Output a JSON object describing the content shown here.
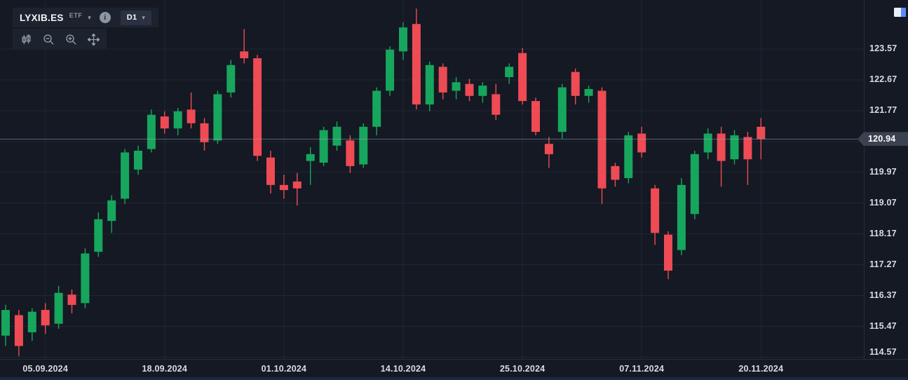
{
  "glyphs": {
    "caret": "▾",
    "info": "i"
  },
  "header": {
    "symbol": "LYXIB.ES",
    "instrument_type": "ETF",
    "timeframe": "D1"
  },
  "toolbar": {
    "tools": [
      {
        "name": "chart-type-candles",
        "icon": "candlestick-icon"
      },
      {
        "name": "zoom-out",
        "icon": "magnifier-minus-icon"
      },
      {
        "name": "zoom-in",
        "icon": "magnifier-plus-icon"
      },
      {
        "name": "pan",
        "icon": "move-arrows-icon"
      }
    ]
  },
  "price_axis": {
    "ticks": [
      "123.57",
      "122.67",
      "121.77",
      "119.97",
      "119.07",
      "118.17",
      "117.27",
      "116.37",
      "115.47",
      "114.57"
    ],
    "last_price": "120.94"
  },
  "time_axis": {
    "ticks": [
      {
        "label": "05.09.2024",
        "index": 3
      },
      {
        "label": "18.09.2024",
        "index": 12
      },
      {
        "label": "01.10.2024",
        "index": 21
      },
      {
        "label": "14.10.2024",
        "index": 30
      },
      {
        "label": "25.10.2024",
        "index": 39
      },
      {
        "label": "07.11.2024",
        "index": 48
      },
      {
        "label": "20.11.2024",
        "index": 57
      }
    ]
  },
  "chart_data": {
    "type": "candlestick",
    "title": "LYXIB.ES D1",
    "xlabel": "",
    "ylabel": "",
    "ylim": [
      114.52,
      125.0
    ],
    "grid": true,
    "grid_prices": [
      123.57,
      122.67,
      121.77,
      120.87,
      119.97,
      119.07,
      118.17,
      117.27,
      116.37,
      115.47,
      114.57
    ],
    "grid_color": "#202733",
    "up_color": "#17a65d",
    "down_color": "#ee4b55",
    "last_price": 120.94,
    "x0": 8,
    "dx": 18.9,
    "candles": [
      {
        "d": "02.09.2024",
        "o": 115.2,
        "h": 116.1,
        "l": 114.9,
        "c": 115.95
      },
      {
        "d": "03.09.2024",
        "o": 115.8,
        "h": 115.95,
        "l": 114.6,
        "c": 114.9
      },
      {
        "d": "04.09.2024",
        "o": 115.3,
        "h": 116.0,
        "l": 115.05,
        "c": 115.9
      },
      {
        "d": "05.09.2024",
        "o": 115.95,
        "h": 116.15,
        "l": 115.25,
        "c": 115.5
      },
      {
        "d": "06.09.2024",
        "o": 115.55,
        "h": 116.65,
        "l": 115.4,
        "c": 116.45
      },
      {
        "d": "09.09.2024",
        "o": 116.4,
        "h": 116.55,
        "l": 115.85,
        "c": 116.1
      },
      {
        "d": "10.09.2024",
        "o": 116.15,
        "h": 117.75,
        "l": 116.0,
        "c": 117.6
      },
      {
        "d": "11.09.2024",
        "o": 117.65,
        "h": 118.8,
        "l": 117.5,
        "c": 118.6
      },
      {
        "d": "12.09.2024",
        "o": 118.55,
        "h": 119.3,
        "l": 118.2,
        "c": 119.15
      },
      {
        "d": "13.09.2024",
        "o": 119.2,
        "h": 120.65,
        "l": 119.05,
        "c": 120.55
      },
      {
        "d": "16.09.2024",
        "o": 120.05,
        "h": 120.75,
        "l": 119.9,
        "c": 120.6
      },
      {
        "d": "17.09.2024",
        "o": 120.65,
        "h": 121.8,
        "l": 120.55,
        "c": 121.65
      },
      {
        "d": "18.09.2024",
        "o": 121.6,
        "h": 121.75,
        "l": 121.1,
        "c": 121.25
      },
      {
        "d": "19.09.2024",
        "o": 121.25,
        "h": 121.85,
        "l": 121.05,
        "c": 121.75
      },
      {
        "d": "20.09.2024",
        "o": 121.8,
        "h": 122.3,
        "l": 121.25,
        "c": 121.4
      },
      {
        "d": "23.09.2024",
        "o": 121.4,
        "h": 121.55,
        "l": 120.6,
        "c": 120.85
      },
      {
        "d": "24.09.2024",
        "o": 120.9,
        "h": 122.35,
        "l": 120.8,
        "c": 122.25
      },
      {
        "d": "25.09.2024",
        "o": 122.3,
        "h": 123.25,
        "l": 122.15,
        "c": 123.1
      },
      {
        "d": "26.09.2024",
        "o": 123.5,
        "h": 124.15,
        "l": 123.15,
        "c": 123.3
      },
      {
        "d": "27.09.2024",
        "o": 123.3,
        "h": 123.4,
        "l": 120.3,
        "c": 120.45
      },
      {
        "d": "30.09.2024",
        "o": 120.4,
        "h": 120.6,
        "l": 119.35,
        "c": 119.6
      },
      {
        "d": "01.10.2024",
        "o": 119.6,
        "h": 119.9,
        "l": 119.2,
        "c": 119.45
      },
      {
        "d": "02.10.2024",
        "o": 119.7,
        "h": 119.95,
        "l": 119.0,
        "c": 119.5
      },
      {
        "d": "03.10.2024",
        "o": 120.3,
        "h": 120.7,
        "l": 119.6,
        "c": 120.5
      },
      {
        "d": "04.10.2024",
        "o": 120.25,
        "h": 121.3,
        "l": 120.15,
        "c": 121.2
      },
      {
        "d": "07.10.2024",
        "o": 120.75,
        "h": 121.45,
        "l": 120.6,
        "c": 121.3
      },
      {
        "d": "08.10.2024",
        "o": 120.9,
        "h": 121.05,
        "l": 119.95,
        "c": 120.15
      },
      {
        "d": "09.10.2024",
        "o": 120.2,
        "h": 121.4,
        "l": 120.1,
        "c": 121.3
      },
      {
        "d": "10.10.2024",
        "o": 121.3,
        "h": 122.45,
        "l": 121.05,
        "c": 122.35
      },
      {
        "d": "11.10.2024",
        "o": 122.35,
        "h": 123.65,
        "l": 122.2,
        "c": 123.55
      },
      {
        "d": "14.10.2024",
        "o": 123.5,
        "h": 124.35,
        "l": 123.25,
        "c": 124.2
      },
      {
        "d": "15.10.2024",
        "o": 124.3,
        "h": 124.75,
        "l": 121.8,
        "c": 121.95
      },
      {
        "d": "16.10.2024",
        "o": 121.95,
        "h": 123.2,
        "l": 121.75,
        "c": 123.1
      },
      {
        "d": "17.10.2024",
        "o": 123.05,
        "h": 123.15,
        "l": 122.1,
        "c": 122.3
      },
      {
        "d": "18.10.2024",
        "o": 122.35,
        "h": 122.75,
        "l": 122.1,
        "c": 122.6
      },
      {
        "d": "21.10.2024",
        "o": 122.55,
        "h": 122.7,
        "l": 122.05,
        "c": 122.2
      },
      {
        "d": "22.10.2024",
        "o": 122.2,
        "h": 122.6,
        "l": 122.0,
        "c": 122.5
      },
      {
        "d": "23.10.2024",
        "o": 122.25,
        "h": 122.55,
        "l": 121.5,
        "c": 121.65
      },
      {
        "d": "24.10.2024",
        "o": 122.75,
        "h": 123.15,
        "l": 122.55,
        "c": 123.05
      },
      {
        "d": "25.10.2024",
        "o": 123.45,
        "h": 123.6,
        "l": 121.95,
        "c": 122.05
      },
      {
        "d": "28.10.2024",
        "o": 122.05,
        "h": 122.15,
        "l": 121.05,
        "c": 121.15
      },
      {
        "d": "29.10.2024",
        "o": 120.8,
        "h": 121.0,
        "l": 120.1,
        "c": 120.5
      },
      {
        "d": "30.10.2024",
        "o": 121.15,
        "h": 122.55,
        "l": 120.95,
        "c": 122.45
      },
      {
        "d": "31.10.2024",
        "o": 122.9,
        "h": 123.0,
        "l": 121.95,
        "c": 122.2
      },
      {
        "d": "01.11.2024",
        "o": 122.2,
        "h": 122.5,
        "l": 122.0,
        "c": 122.4
      },
      {
        "d": "04.11.2024",
        "o": 122.35,
        "h": 122.45,
        "l": 119.05,
        "c": 119.5
      },
      {
        "d": "05.11.2024",
        "o": 120.15,
        "h": 120.25,
        "l": 119.55,
        "c": 119.75
      },
      {
        "d": "06.11.2024",
        "o": 119.8,
        "h": 121.15,
        "l": 119.65,
        "c": 121.05
      },
      {
        "d": "07.11.2024",
        "o": 121.1,
        "h": 121.3,
        "l": 120.4,
        "c": 120.55
      },
      {
        "d": "08.11.2024",
        "o": 119.5,
        "h": 119.6,
        "l": 117.85,
        "c": 118.2
      },
      {
        "d": "11.11.2024",
        "o": 118.15,
        "h": 118.25,
        "l": 116.85,
        "c": 117.1
      },
      {
        "d": "12.11.2024",
        "o": 117.7,
        "h": 119.8,
        "l": 117.55,
        "c": 119.6
      },
      {
        "d": "13.11.2024",
        "o": 118.75,
        "h": 120.6,
        "l": 118.6,
        "c": 120.5
      },
      {
        "d": "14.11.2024",
        "o": 120.55,
        "h": 121.25,
        "l": 120.35,
        "c": 121.1
      },
      {
        "d": "15.11.2024",
        "o": 121.1,
        "h": 121.3,
        "l": 119.55,
        "c": 120.3
      },
      {
        "d": "18.11.2024",
        "o": 120.35,
        "h": 121.2,
        "l": 120.2,
        "c": 121.05
      },
      {
        "d": "19.11.2024",
        "o": 121.0,
        "h": 121.15,
        "l": 119.6,
        "c": 120.35
      },
      {
        "d": "20.11.2024",
        "o": 121.3,
        "h": 121.55,
        "l": 120.35,
        "c": 120.94
      }
    ]
  }
}
